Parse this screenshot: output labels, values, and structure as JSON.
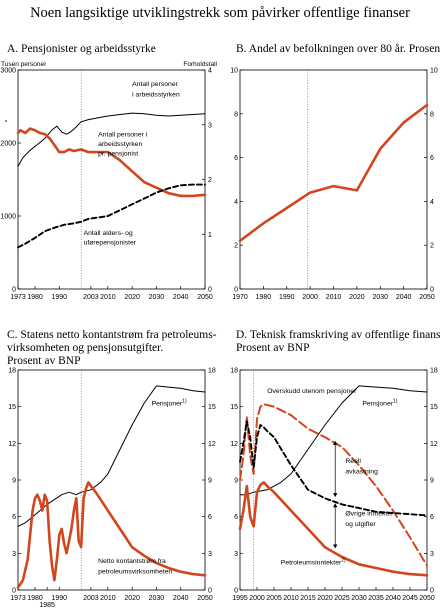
{
  "title": "Noen langsiktige utviklingstrekk som påvirker offentlige finanser",
  "colors": {
    "red": "#d2461e",
    "black": "#000000",
    "frame": "#000000"
  },
  "chart_data": [
    {
      "id": "A",
      "type": "line",
      "title_lines": [
        "A.   Pensjonister og arbeidsstyrke"
      ],
      "ylabel_left": "Tusen personer",
      "ylabel_right": "Forholdstall",
      "xlim": [
        1973,
        2050
      ],
      "ylim_left": [
        0,
        3000
      ],
      "ylim_right": [
        0,
        4
      ],
      "xticks": [
        1973,
        1980,
        1990,
        2003,
        2010,
        2020,
        2030,
        2040,
        2050
      ],
      "yticks_left": [
        0,
        1000,
        2000,
        3000
      ],
      "yticks_right": [
        0,
        1,
        2,
        3,
        4
      ],
      "vline": 1999,
      "series": [
        {
          "name": "Antall personer i arbeidsstyrken",
          "axis": "left",
          "style": "black-thin",
          "x": [
            1973,
            1975,
            1978,
            1981,
            1984,
            1987,
            1989,
            1991,
            1993,
            1995,
            1997,
            1999,
            2002,
            2005,
            2010,
            2015,
            2020,
            2025,
            2030,
            2035,
            2040,
            2045,
            2050
          ],
          "y": [
            1680,
            1800,
            1900,
            1980,
            2060,
            2180,
            2230,
            2150,
            2120,
            2160,
            2220,
            2290,
            2320,
            2340,
            2370,
            2390,
            2410,
            2400,
            2380,
            2370,
            2380,
            2390,
            2400
          ]
        },
        {
          "name": "Antall personer i arbeidsstyrken pr. pensjonist",
          "axis": "right",
          "style": "red-thick",
          "x": [
            1973,
            1974,
            1976,
            1978,
            1980,
            1982,
            1984,
            1986,
            1988,
            1990,
            1992,
            1994,
            1996,
            1999,
            2002,
            2005,
            2010,
            2015,
            2020,
            2025,
            2030,
            2035,
            2040,
            2045,
            2050
          ],
          "y": [
            2.85,
            2.9,
            2.85,
            2.93,
            2.9,
            2.85,
            2.83,
            2.75,
            2.63,
            2.5,
            2.5,
            2.55,
            2.52,
            2.55,
            2.5,
            2.5,
            2.5,
            2.35,
            2.15,
            1.95,
            1.85,
            1.75,
            1.7,
            1.7,
            1.72
          ]
        },
        {
          "name": "Antall alders- og uførepensjonister",
          "axis": "left",
          "style": "black-dashed",
          "x": [
            1973,
            1976,
            1980,
            1984,
            1988,
            1992,
            1996,
            1999,
            2002,
            2006,
            2010,
            2015,
            2020,
            2025,
            2030,
            2035,
            2040,
            2045,
            2050
          ],
          "y": [
            570,
            620,
            700,
            790,
            840,
            880,
            900,
            920,
            960,
            980,
            1000,
            1080,
            1160,
            1240,
            1320,
            1380,
            1420,
            1430,
            1430
          ]
        }
      ],
      "labels": [
        {
          "text": "Antall personer",
          "x": 2020,
          "y": 2780,
          "axis": "left"
        },
        {
          "text": "i arbeidsstyrken",
          "x": 2020,
          "y": 2640,
          "axis": "left"
        },
        {
          "text": "Antall personer i",
          "x": 2006,
          "y": 2090,
          "axis": "left"
        },
        {
          "text": "arbeidsstyrken",
          "x": 2006,
          "y": 1960,
          "axis": "left"
        },
        {
          "text": "pr. pensjonist",
          "x": 2006,
          "y": 1830,
          "axis": "left"
        },
        {
          "text": "Antall alders- og",
          "x": 2000,
          "y": 740,
          "axis": "left"
        },
        {
          "text": "uførepensjonister",
          "x": 2000,
          "y": 610,
          "axis": "left"
        }
      ]
    },
    {
      "id": "B",
      "type": "line",
      "title_lines": [
        "B.   Andel av befolkningen over 80 år. Prosent"
      ],
      "xlim": [
        1970,
        2050
      ],
      "ylim_left": [
        0,
        10
      ],
      "ylim_right": [
        0,
        10
      ],
      "xticks": [
        1970,
        1980,
        1990,
        2000,
        2010,
        2020,
        2030,
        2040,
        2050
      ],
      "yticks_left": [
        0,
        2,
        4,
        6,
        8,
        10
      ],
      "yticks_right": [
        0,
        2,
        4,
        6,
        8,
        10
      ],
      "vline": 1999,
      "series": [
        {
          "name": "Andel over 80 år",
          "axis": "left",
          "style": "red-thick",
          "x": [
            1970,
            1980,
            1990,
            2000,
            2010,
            2020,
            2030,
            2040,
            2050
          ],
          "y": [
            2.2,
            3.0,
            3.7,
            4.4,
            4.7,
            4.5,
            6.4,
            7.6,
            8.4
          ]
        }
      ],
      "labels": []
    },
    {
      "id": "C",
      "type": "line",
      "title_lines": [
        "C.   Statens netto kontantstrøm fra petroleums-",
        "virksomheten og pensjonsutgifter.",
        "Prosent av BNP"
      ],
      "xlim": [
        1973,
        2050
      ],
      "ylim_left": [
        0,
        18
      ],
      "ylim_right": [
        0,
        18
      ],
      "xticks": [
        1973,
        1980,
        1990,
        2003,
        2010,
        2020,
        2030,
        2040,
        2050
      ],
      "xticks_extra": [
        1985
      ],
      "yticks_left": [
        0,
        3,
        6,
        9,
        12,
        15,
        18
      ],
      "yticks_right": [
        0,
        3,
        6,
        9,
        12,
        15,
        18
      ],
      "vline": 1999,
      "series": [
        {
          "name": "Pensjoner",
          "axis": "left",
          "style": "black-thin",
          "x": [
            1973,
            1976,
            1979,
            1982,
            1985,
            1988,
            1991,
            1994,
            1997,
            1999,
            2003,
            2007,
            2010,
            2015,
            2020,
            2025,
            2030,
            2035,
            2040,
            2045,
            2050
          ],
          "y": [
            5.2,
            5.5,
            6.0,
            6.5,
            7.0,
            7.4,
            7.8,
            8.0,
            7.8,
            8.0,
            8.2,
            8.8,
            9.5,
            11.5,
            13.5,
            15.3,
            16.7,
            16.6,
            16.5,
            16.3,
            16.2
          ]
        },
        {
          "name": "Netto kontantstrøm fra petroleumsvirksomheten",
          "axis": "left",
          "style": "red-thick",
          "x": [
            1973,
            1975,
            1977,
            1978,
            1979,
            1980,
            1981,
            1982,
            1983,
            1984,
            1985,
            1986,
            1987,
            1988,
            1989,
            1990,
            1991,
            1992,
            1993,
            1994,
            1995,
            1996,
            1997,
            1998,
            1999,
            2000,
            2001,
            2002,
            2003,
            2005,
            2010,
            2015,
            2020,
            2025,
            2030,
            2035,
            2040,
            2045,
            2050
          ],
          "y": [
            0.2,
            0.8,
            2.5,
            4.5,
            6.5,
            7.5,
            7.8,
            7.3,
            6.5,
            7.8,
            7.3,
            4.0,
            2.0,
            0.8,
            2.5,
            4.5,
            5.0,
            3.8,
            3.0,
            4.0,
            5.0,
            6.5,
            7.5,
            4.0,
            3.5,
            7.5,
            8.3,
            8.8,
            8.5,
            8.0,
            6.5,
            5.0,
            3.5,
            2.8,
            2.2,
            1.8,
            1.5,
            1.3,
            1.2
          ]
        }
      ],
      "labels": [
        {
          "text": "Pensjoner",
          "x": 2028,
          "y": 15.1,
          "axis": "left",
          "sup": "1)"
        },
        {
          "text": "Netto kontantstrøm fra",
          "x": 2006,
          "y": 2.2,
          "axis": "left"
        },
        {
          "text": "petroleumsvirksomheten",
          "x": 2006,
          "y": 1.35,
          "axis": "left"
        }
      ]
    },
    {
      "id": "D",
      "type": "line",
      "title_lines": [
        "D.   Teknisk framskriving av offentlige finanser.",
        "Prosent av BNP"
      ],
      "xlim": [
        1995,
        2050
      ],
      "ylim_left": [
        0,
        18
      ],
      "ylim_right": [
        0,
        18
      ],
      "xticks": [
        1995,
        2005,
        2015,
        2025,
        2035,
        2045
      ],
      "xticks_extra": [
        2000,
        2010,
        2020,
        2030,
        2040,
        2050
      ],
      "yticks_left": [
        0,
        3,
        6,
        9,
        12,
        15,
        18
      ],
      "yticks_right": [
        0,
        3,
        6,
        9,
        12,
        15,
        18
      ],
      "vline": 1999,
      "series": [
        {
          "name": "Pensjoner",
          "axis": "left",
          "style": "black-thin",
          "x": [
            1995,
            1997,
            1999,
            2003,
            2007,
            2010,
            2015,
            2020,
            2025,
            2030,
            2035,
            2040,
            2045,
            2050
          ],
          "y": [
            7.8,
            7.8,
            8.0,
            8.2,
            8.8,
            9.5,
            11.5,
            13.5,
            15.3,
            16.7,
            16.6,
            16.5,
            16.3,
            16.2
          ]
        },
        {
          "name": "Overskudd utenom pensjoner",
          "axis": "left",
          "style": "red-dashed",
          "x": [
            1995,
            1996,
            1997,
            1998,
            1999,
            2000,
            2001,
            2002,
            2005,
            2010,
            2015,
            2020,
            2025,
            2030,
            2035,
            2040,
            2045,
            2050
          ],
          "y": [
            9.0,
            11.0,
            14.2,
            11.0,
            9.5,
            14.0,
            15.0,
            15.2,
            15.0,
            14.3,
            13.2,
            12.5,
            11.7,
            10.2,
            8.5,
            6.5,
            4.3,
            2.0
          ]
        },
        {
          "name": "Reell avkastning",
          "axis": "left",
          "style": "black-dashed",
          "x": [
            1995,
            1996,
            1997,
            1998,
            1999,
            2000,
            2001,
            2002,
            2003,
            2005,
            2010,
            2015,
            2020,
            2025,
            2030,
            2035,
            2040,
            2045,
            2050
          ],
          "y": [
            10.5,
            12.0,
            13.8,
            12.5,
            10.0,
            12.5,
            13.5,
            13.3,
            13.0,
            12.5,
            10.2,
            8.2,
            7.5,
            7.0,
            6.7,
            6.4,
            6.3,
            6.2,
            6.1
          ]
        },
        {
          "name": "Petroleumsinntekter",
          "axis": "left",
          "style": "red-thick",
          "x": [
            1995,
            1996,
            1997,
            1998,
            1999,
            2000,
            2001,
            2002,
            2003,
            2005,
            2010,
            2015,
            2020,
            2025,
            2030,
            2035,
            2040,
            2045,
            2050
          ],
          "y": [
            5.0,
            6.5,
            8.5,
            6.0,
            5.2,
            8.0,
            8.6,
            8.8,
            8.5,
            8.0,
            6.5,
            5.0,
            3.5,
            2.7,
            2.1,
            1.8,
            1.5,
            1.3,
            1.2
          ]
        }
      ],
      "labels": [
        {
          "text": "Overskudd utenom pensjoner",
          "x": 2003,
          "y": 16.1,
          "axis": "left"
        },
        {
          "text": "Pensjoner",
          "x": 2031,
          "y": 15.1,
          "axis": "left",
          "sup": "1)"
        },
        {
          "text": "Reell",
          "x": 2026,
          "y": 10.4,
          "axis": "left"
        },
        {
          "text": "avkastning",
          "x": 2026,
          "y": 9.55,
          "axis": "left"
        },
        {
          "text": "Øvrige inntekter",
          "x": 2026,
          "y": 6.1,
          "axis": "left"
        },
        {
          "text": "og utgifter",
          "x": 2026,
          "y": 5.25,
          "axis": "left"
        },
        {
          "text": "Petroleumsinntekter",
          "x": 2007,
          "y": 2.1,
          "axis": "left",
          "sup": "2)"
        }
      ],
      "arrows": [
        {
          "x": 2023,
          "y1": 12.2,
          "y2": 7.6
        },
        {
          "x": 2023,
          "y1": 7.1,
          "y2": 3.4
        }
      ]
    }
  ]
}
